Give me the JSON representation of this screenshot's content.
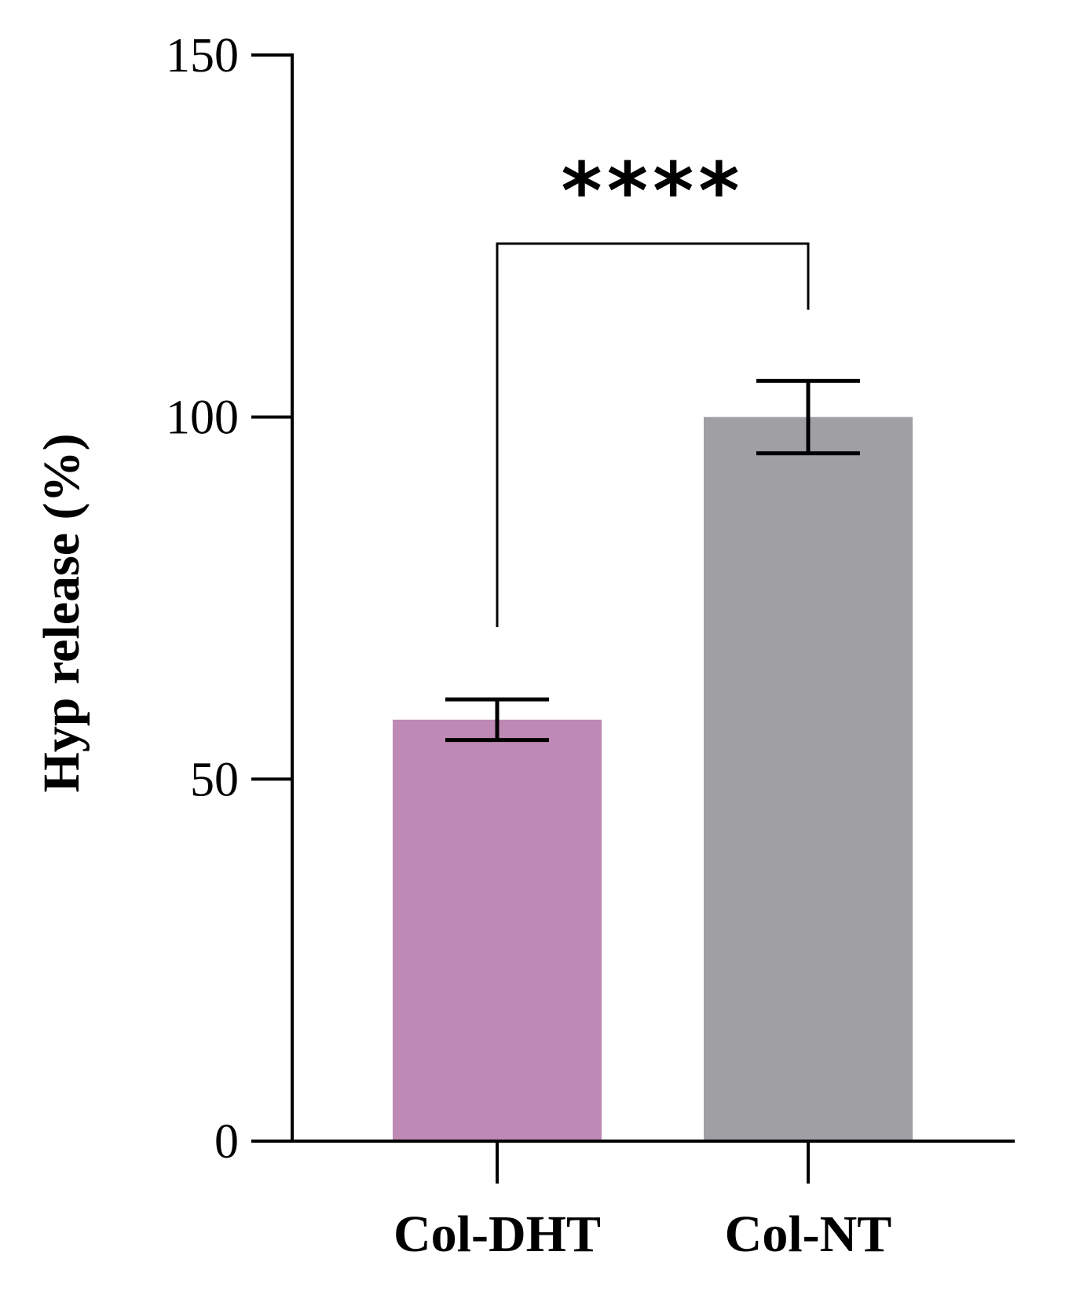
{
  "chart_data": {
    "type": "bar",
    "title": "",
    "xlabel": "",
    "ylabel": "Hyp release (%)",
    "ylim": [
      0,
      150
    ],
    "yticks": [
      0,
      50,
      100,
      150
    ],
    "grid": false,
    "categories": [
      "Col-DHT",
      "Col-NT"
    ],
    "values": [
      58.2,
      100
    ],
    "errors": [
      2.8,
      5.0
    ],
    "colors": [
      "#bf89b5",
      "#a09fa4"
    ],
    "significance": {
      "between": [
        "Col-DHT",
        "Col-NT"
      ],
      "label": "****"
    }
  }
}
